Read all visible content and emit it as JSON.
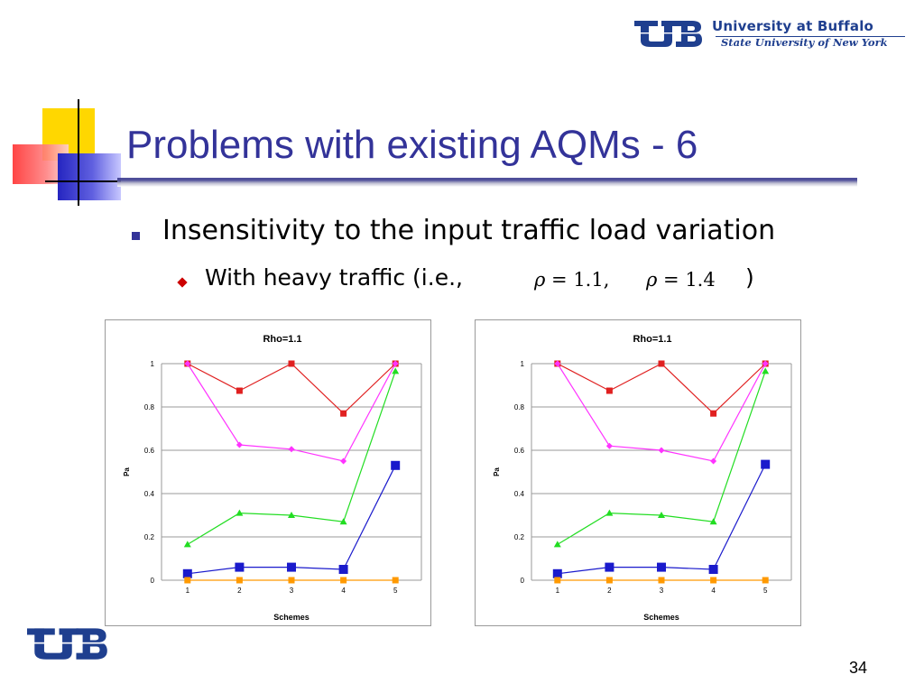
{
  "header": {
    "logo_name": "University at Buffalo",
    "logo_sub": "State University of New York"
  },
  "slide": {
    "title": "Problems with existing AQMs - 6",
    "bullet1": "Insensitivity to the input traffic load variation",
    "bullet2_prefix": "With heavy traffic (i.e.,",
    "math1_symbol": "ρ",
    "math1_value": "= 1.1,",
    "math2_symbol": "ρ",
    "math2_value": "= 1.4",
    "bullet2_suffix": ")",
    "page_number": "34"
  },
  "colors": {
    "title": "#333399",
    "bullet": "#333399",
    "sub_bullet": "#cc0000",
    "ub_blue": "#1f3f8f"
  },
  "chart_data": [
    {
      "type": "line",
      "title": "Rho=1.1",
      "xlabel": "Schemes",
      "ylabel": "Pa",
      "categories": [
        "1",
        "2",
        "3",
        "4",
        "5"
      ],
      "ylim": [
        0,
        1
      ],
      "yticks": [
        "0",
        "0.2",
        "0.4",
        "0.6",
        "0.8",
        "1"
      ],
      "grid": true,
      "series": [
        {
          "color": "#e02020",
          "marker": "square",
          "values": [
            1.0,
            0.875,
            1.0,
            0.77,
            1.0
          ]
        },
        {
          "color": "#ff33ff",
          "marker": "diamond",
          "values": [
            1.0,
            0.625,
            0.605,
            0.55,
            1.0
          ]
        },
        {
          "color": "#22dd22",
          "marker": "triangle",
          "values": [
            0.165,
            0.31,
            0.3,
            0.27,
            0.965
          ]
        },
        {
          "color": "#1a1acc",
          "marker": "square-large",
          "values": [
            0.03,
            0.06,
            0.06,
            0.05,
            0.53
          ]
        },
        {
          "color": "#ff9900",
          "marker": "square",
          "values": [
            0.0,
            0.0,
            0.0,
            0.0,
            0.0
          ]
        }
      ]
    },
    {
      "type": "line",
      "title": "Rho=1.1",
      "xlabel": "Schemes",
      "ylabel": "Pa",
      "categories": [
        "1",
        "2",
        "3",
        "4",
        "5"
      ],
      "ylim": [
        0,
        1
      ],
      "yticks": [
        "0",
        "0.2",
        "0.4",
        "0.6",
        "0.8",
        "1"
      ],
      "grid": true,
      "series": [
        {
          "color": "#e02020",
          "marker": "square",
          "values": [
            1.0,
            0.875,
            1.0,
            0.77,
            1.0
          ]
        },
        {
          "color": "#ff33ff",
          "marker": "diamond",
          "values": [
            1.0,
            0.62,
            0.6,
            0.55,
            1.0
          ]
        },
        {
          "color": "#22dd22",
          "marker": "triangle",
          "values": [
            0.165,
            0.31,
            0.3,
            0.27,
            0.965
          ]
        },
        {
          "color": "#1a1acc",
          "marker": "square-large",
          "values": [
            0.03,
            0.06,
            0.06,
            0.05,
            0.535
          ]
        },
        {
          "color": "#ff9900",
          "marker": "square",
          "values": [
            0.0,
            0.0,
            0.0,
            0.0,
            0.0
          ]
        }
      ]
    }
  ]
}
